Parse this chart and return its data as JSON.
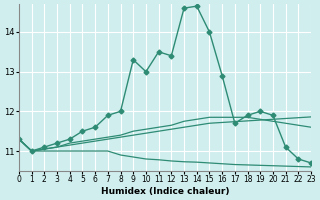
{
  "xlabel": "Humidex (Indice chaleur)",
  "ylabel": "",
  "bg_color": "#d0eeee",
  "grid_color": "#ffffff",
  "line_color": "#2e8b74",
  "xlim": [
    0,
    23
  ],
  "ylim": [
    10.5,
    14.7
  ],
  "yticks": [
    11,
    12,
    13,
    14
  ],
  "xticks": [
    0,
    1,
    2,
    3,
    4,
    5,
    6,
    7,
    8,
    9,
    10,
    11,
    12,
    13,
    14,
    15,
    16,
    17,
    18,
    19,
    20,
    21,
    22,
    23
  ],
  "series": [
    {
      "x": [
        0,
        1,
        2,
        3,
        4,
        5,
        6,
        7,
        8,
        9,
        10,
        11,
        12,
        13,
        14,
        15,
        16,
        17,
        18,
        19,
        20,
        21,
        22,
        23
      ],
      "y": [
        11.3,
        11.0,
        11.1,
        11.2,
        11.3,
        11.5,
        11.6,
        11.9,
        12.0,
        13.3,
        13.0,
        13.5,
        13.4,
        14.6,
        14.65,
        14.0,
        12.9,
        11.7,
        11.9,
        12.0,
        11.9,
        11.1,
        10.8,
        10.7
      ],
      "marker": "D",
      "markersize": 2.5
    },
    {
      "x": [
        0,
        1,
        2,
        3,
        4,
        5,
        6,
        7,
        8,
        9,
        10,
        11,
        12,
        13,
        14,
        15,
        16,
        17,
        18,
        19,
        20,
        21,
        22,
        23
      ],
      "y": [
        11.3,
        11.0,
        11.05,
        11.1,
        11.2,
        11.25,
        11.3,
        11.35,
        11.4,
        11.5,
        11.55,
        11.6,
        11.65,
        11.75,
        11.8,
        11.85,
        11.85,
        11.85,
        11.85,
        11.8,
        11.75,
        11.7,
        11.65,
        11.6
      ],
      "marker": null,
      "markersize": 0
    },
    {
      "x": [
        0,
        1,
        2,
        3,
        4,
        5,
        6,
        7,
        8,
        9,
        10,
        11,
        12,
        13,
        14,
        15,
        16,
        17,
        18,
        19,
        20,
        21,
        22,
        23
      ],
      "y": [
        11.3,
        11.0,
        11.05,
        11.1,
        11.15,
        11.2,
        11.25,
        11.3,
        11.35,
        11.4,
        11.45,
        11.5,
        11.55,
        11.6,
        11.65,
        11.7,
        11.72,
        11.74,
        11.76,
        11.78,
        11.8,
        11.82,
        11.84,
        11.86
      ],
      "marker": null,
      "markersize": 0
    },
    {
      "x": [
        0,
        1,
        2,
        3,
        4,
        5,
        6,
        7,
        8,
        9,
        10,
        11,
        12,
        13,
        14,
        15,
        16,
        17,
        18,
        19,
        20,
        21,
        22,
        23
      ],
      "y": [
        11.3,
        11.0,
        11.0,
        11.0,
        11.0,
        11.0,
        11.0,
        11.0,
        10.9,
        10.85,
        10.8,
        10.78,
        10.75,
        10.73,
        10.72,
        10.7,
        10.68,
        10.66,
        10.65,
        10.64,
        10.63,
        10.62,
        10.61,
        10.6
      ],
      "marker": null,
      "markersize": 0
    }
  ]
}
